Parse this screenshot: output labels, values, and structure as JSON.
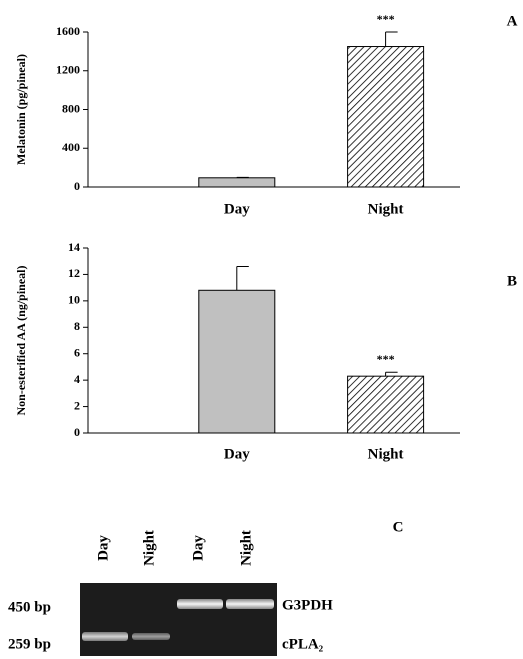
{
  "chart_data": [
    {
      "type": "bar",
      "panel_label": "A",
      "ylabel": "Melatonin (pg/pineal)",
      "categories": [
        "Day",
        "Night"
      ],
      "values": [
        95,
        1450
      ],
      "errors": [
        5,
        150
      ],
      "value_annotations": [
        null,
        "***"
      ],
      "colors": [
        "#c0c0c0",
        "#ffffff"
      ],
      "hatched": [
        false,
        true
      ],
      "ylim": [
        0,
        1600
      ],
      "yticks": [
        0,
        400,
        800,
        1200,
        1600
      ]
    },
    {
      "type": "bar",
      "panel_label": "B",
      "ylabel": "Non-esterified AA (ng/pineal)",
      "categories": [
        "Day",
        "Night"
      ],
      "values": [
        10.8,
        4.3
      ],
      "errors": [
        1.8,
        0.3
      ],
      "value_annotations": [
        null,
        "***"
      ],
      "colors": [
        "#c0c0c0",
        "#ffffff"
      ],
      "hatched": [
        false,
        true
      ],
      "ylim": [
        0,
        14
      ],
      "yticks": [
        0,
        2,
        4,
        6,
        8,
        10,
        12,
        14
      ]
    }
  ],
  "gel": {
    "panel_label": "C",
    "lanes": [
      "Day",
      "Night",
      "Day",
      "Night"
    ],
    "bands": [
      {
        "size": "450 bp",
        "gene": "G3PDH"
      },
      {
        "size": "259 bp",
        "gene": "cPLA₂"
      }
    ]
  }
}
